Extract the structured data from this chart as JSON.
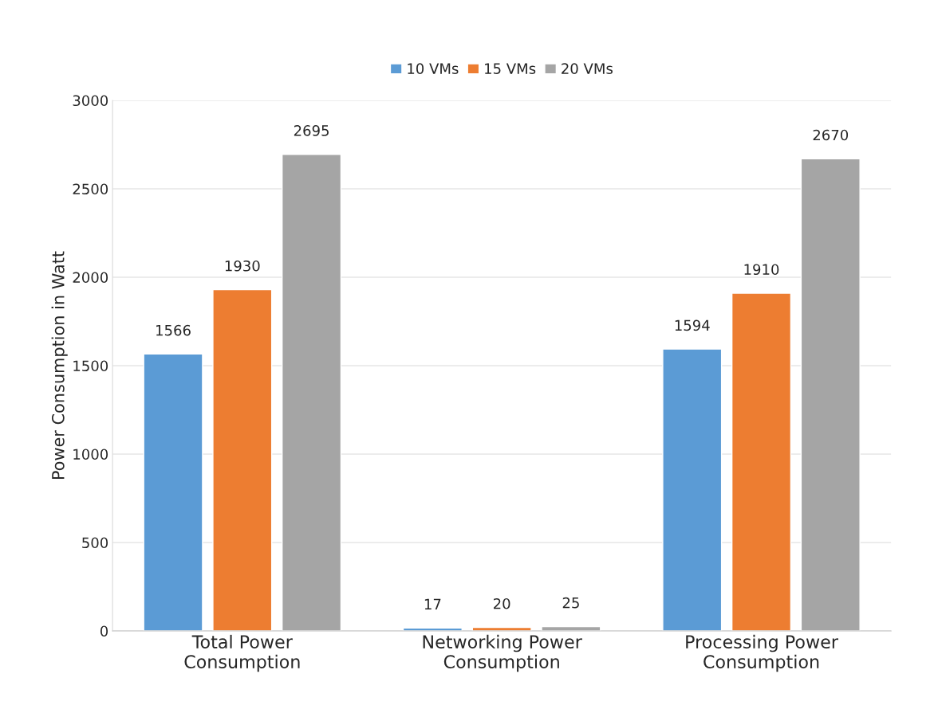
{
  "chart_data": {
    "type": "bar",
    "ylabel": "Power Consumption in Watt",
    "categories": [
      "Total Power\nConsumption",
      "Networking Power\nConsumption",
      "Processing Power\nConsumption"
    ],
    "series": [
      {
        "name": "10 VMs",
        "color": "#5b9bd5",
        "values": [
          1566,
          17,
          1594
        ]
      },
      {
        "name": "15 VMs",
        "color": "#ed7d31",
        "values": [
          1930,
          20,
          1910
        ]
      },
      {
        "name": "20 VMs",
        "color": "#a5a5a5",
        "values": [
          2695,
          25,
          2670
        ]
      }
    ],
    "ylim": [
      0,
      3000
    ],
    "yticks": [
      0,
      500,
      1000,
      1500,
      2000,
      2500,
      3000
    ],
    "grid": "y",
    "legend": "top",
    "data_labels": true
  }
}
